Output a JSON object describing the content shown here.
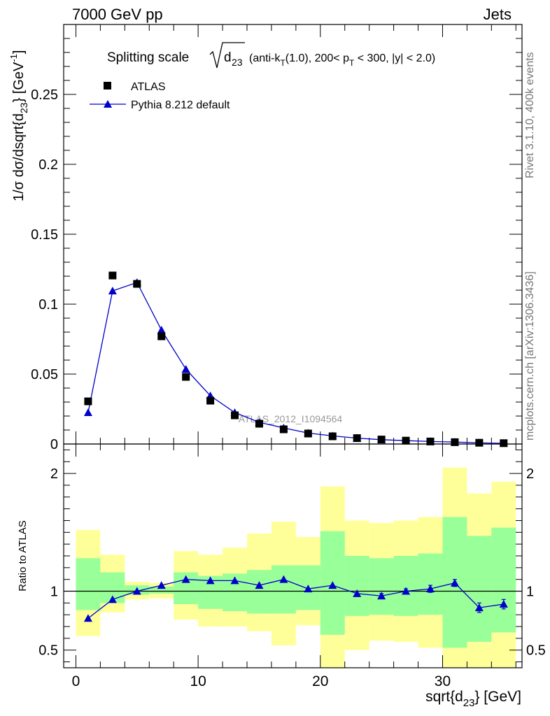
{
  "header": {
    "left": "7000 GeV pp",
    "right": "Jets"
  },
  "side_labels": {
    "rivet": "Rivet 3.1.10,  400k events",
    "mcplots": "mcplots.cern.ch [arXiv:1306.3436]"
  },
  "watermark": "ATLAS_2012_I1094564",
  "colors": {
    "mc": "#0000cc",
    "data": "#000000",
    "band_inner": "#99ff99",
    "band_outer": "#ffff99"
  },
  "chart_data": [
    {
      "type": "line",
      "title": {
        "prefix": "Splitting scale",
        "sqrt_var": "d",
        "sqrt_sub": "23",
        "details_1": "(anti-k",
        "details_1_sub": "T",
        "details_2": "(1.0), 200< p",
        "details_2_sub": "T",
        "details_3": " < 300, |y| < 2.0)"
      },
      "ylabel": {
        "main": "1/σ dσ/dsqrt{d",
        "sub": "23",
        "rest": "} [GeV",
        "sup": "-1",
        "end": "]"
      },
      "xlim": [
        -1,
        36.5
      ],
      "ylim": [
        0,
        0.3
      ],
      "yticks": [
        0,
        0.05,
        0.1,
        0.15,
        0.2,
        0.25
      ],
      "ytick_labels": [
        "0",
        "0.05",
        "0.1",
        "0.15",
        "0.2",
        "0.25"
      ],
      "legend": {
        "position": "top-left",
        "entries": [
          "ATLAS",
          "Pythia 8.212 default"
        ]
      },
      "x": [
        1,
        3,
        5,
        7,
        9,
        11,
        13,
        15,
        17,
        19,
        21,
        23,
        25,
        27,
        29,
        31,
        33,
        35
      ],
      "series": [
        {
          "name": "ATLAS",
          "marker": "square",
          "values": [
            0.0305,
            0.1205,
            0.1145,
            0.077,
            0.048,
            0.031,
            0.0205,
            0.0145,
            0.0105,
            0.0075,
            0.0055,
            0.0042,
            0.0032,
            0.0024,
            0.0018,
            0.0013,
            0.0009,
            0.0006
          ]
        },
        {
          "name": "Pythia 8.212 default",
          "marker": "triangle",
          "values": [
            0.0225,
            0.1095,
            0.1155,
            0.0815,
            0.0535,
            0.0345,
            0.0225,
            0.0155,
            0.0115,
            0.0078,
            0.0058,
            0.0042,
            0.0031,
            0.0024,
            0.0018,
            0.0014,
            0.0008,
            0.0005
          ]
        }
      ]
    },
    {
      "type": "line",
      "ylabel": "Ratio to ATLAS",
      "xlabel": {
        "main": "sqrt{d",
        "sub": "23",
        "rest": "} [GeV]"
      },
      "xlim": [
        -1,
        36.5
      ],
      "ylim": [
        0.35,
        2.25
      ],
      "xticks": [
        0,
        10,
        20,
        30
      ],
      "xtick_labels": [
        "0",
        "10",
        "20",
        "30"
      ],
      "yticks": [
        0.5,
        1,
        2
      ],
      "ytick_labels": [
        "0.5",
        "1",
        "2"
      ],
      "bin_edges": [
        0,
        2,
        4,
        6,
        8,
        10,
        12,
        14,
        16,
        18,
        20,
        22,
        24,
        26,
        28,
        30,
        32,
        34,
        36
      ],
      "band_inner": {
        "low": [
          0.84,
          0.9,
          0.97,
          0.98,
          0.89,
          0.85,
          0.83,
          0.81,
          0.81,
          0.84,
          0.63,
          0.79,
          0.8,
          0.79,
          0.8,
          0.52,
          0.57,
          0.65
        ],
        "high": [
          1.28,
          1.16,
          1.05,
          1.04,
          1.16,
          1.13,
          1.15,
          1.18,
          1.22,
          1.22,
          1.51,
          1.3,
          1.28,
          1.3,
          1.32,
          1.63,
          1.47,
          1.54
        ]
      },
      "band_outer": {
        "low": [
          0.62,
          0.82,
          0.93,
          0.94,
          0.76,
          0.7,
          0.7,
          0.66,
          0.54,
          0.71,
          0.2,
          0.5,
          0.58,
          0.57,
          0.52,
          0.25,
          0.3,
          0.3
        ],
        "high": [
          1.52,
          1.31,
          1.08,
          1.07,
          1.34,
          1.31,
          1.37,
          1.49,
          1.59,
          1.46,
          1.89,
          1.6,
          1.58,
          1.6,
          1.63,
          2.05,
          1.83,
          1.93
        ]
      },
      "x": [
        1,
        3,
        5,
        7,
        9,
        11,
        13,
        15,
        17,
        19,
        21,
        23,
        25,
        27,
        29,
        31,
        33,
        35
      ],
      "series": [
        {
          "name": "Pythia 8.212 default",
          "values": [
            0.77,
            0.93,
            1.0,
            1.05,
            1.1,
            1.09,
            1.09,
            1.05,
            1.1,
            1.02,
            1.05,
            0.98,
            0.96,
            1.0,
            1.02,
            1.07,
            0.86,
            0.89
          ],
          "errors": [
            0.0,
            0.0,
            0.0,
            0.0,
            0.0,
            0.0,
            0.0,
            0.0,
            0.0,
            0.0,
            0.0,
            0.0,
            0.02,
            0.02,
            0.03,
            0.03,
            0.04,
            0.04
          ]
        }
      ]
    }
  ]
}
